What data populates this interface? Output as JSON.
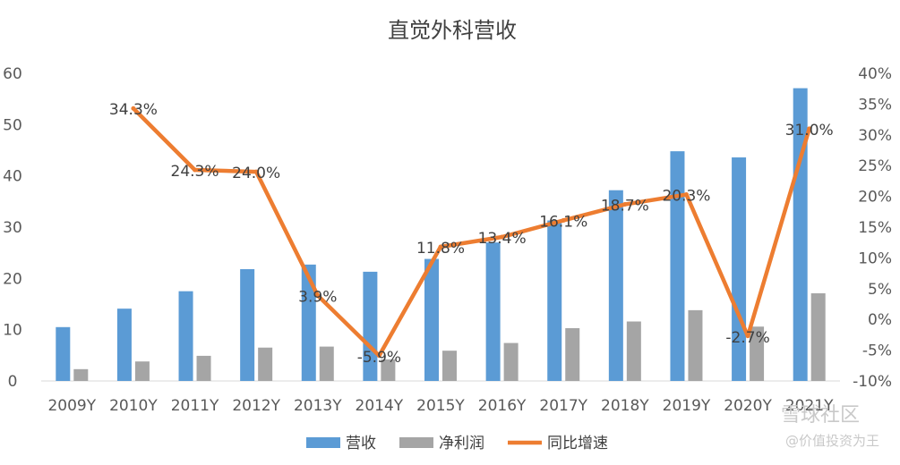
{
  "chart_data": {
    "type": "bar",
    "title": "直觉外科营收",
    "categories": [
      "2009Y",
      "2010Y",
      "2011Y",
      "2012Y",
      "2013Y",
      "2014Y",
      "2015Y",
      "2016Y",
      "2017Y",
      "2018Y",
      "2019Y",
      "2020Y",
      "2021Y"
    ],
    "series": [
      {
        "name": "营收",
        "type": "bar",
        "axis": "left",
        "color": "#5b9bd5",
        "values": [
          10.5,
          14.1,
          17.5,
          21.8,
          22.7,
          21.3,
          23.8,
          27.0,
          31.3,
          37.2,
          44.8,
          43.6,
          57.1
        ]
      },
      {
        "name": "净利润",
        "type": "bar",
        "axis": "left",
        "color": "#a5a5a5",
        "values": [
          2.3,
          3.8,
          4.9,
          6.5,
          6.7,
          4.2,
          5.9,
          7.4,
          10.3,
          11.6,
          13.8,
          10.6,
          17.1
        ]
      },
      {
        "name": "同比增速",
        "type": "line",
        "axis": "right",
        "color": "#ed7d31",
        "values": [
          null,
          34.3,
          24.3,
          24.0,
          3.9,
          -5.9,
          11.8,
          13.4,
          16.1,
          18.7,
          20.3,
          -2.7,
          31.0
        ],
        "labels": [
          "",
          "34.3%",
          "24.3%",
          "24.0%",
          "3.9%",
          "-5.9%",
          "11.8%",
          "13.4%",
          "16.1%",
          "18.7%",
          "20.3%",
          "-2.7%",
          "31.0%"
        ]
      }
    ],
    "y_left": {
      "range": [
        0,
        60
      ],
      "ticks": [
        0,
        10,
        20,
        30,
        40,
        50,
        60
      ]
    },
    "y_right": {
      "range": [
        -10,
        40
      ],
      "ticks": [
        "-10%",
        "-5%",
        "0%",
        "5%",
        "10%",
        "15%",
        "20%",
        "25%",
        "30%",
        "35%",
        "40%"
      ]
    },
    "grid": false,
    "legend_position": "bottom-center",
    "legend": [
      "营收",
      "净利润",
      "同比增速"
    ]
  },
  "watermark": {
    "line1": "雪球社区",
    "line2": "@价值投资为王"
  }
}
